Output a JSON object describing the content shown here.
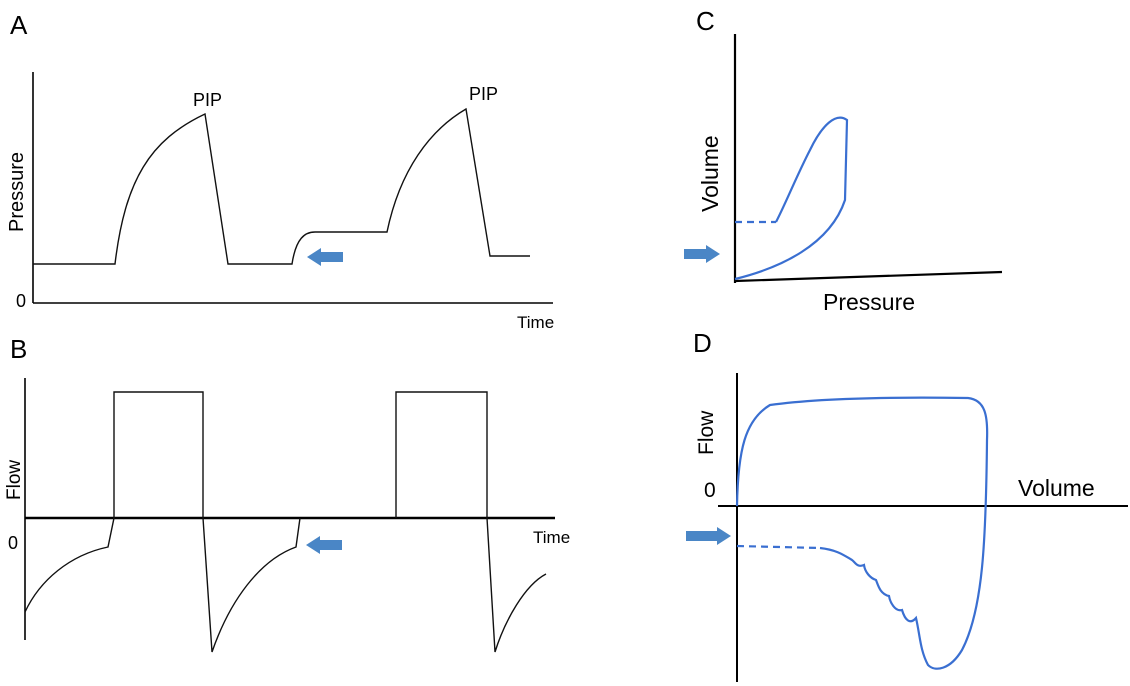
{
  "panels": {
    "A": {
      "letter": "A",
      "y_label": "Pressure",
      "x_label": "Time",
      "origin_label": "0",
      "peak_label_1": "PIP",
      "peak_label_2": "PIP"
    },
    "B": {
      "letter": "B",
      "y_label": "Flow",
      "x_label": "Time",
      "origin_label": "0"
    },
    "C": {
      "letter": "C",
      "y_label": "Volume",
      "x_label": "Pressure"
    },
    "D": {
      "letter": "D",
      "y_label": "Flow",
      "x_label": "Volume",
      "origin_label": "0"
    }
  },
  "colors": {
    "loop": "#3a6fd1",
    "arrow": "#4a86c6",
    "waveform": "#111111"
  },
  "icons": {
    "arrow_left": "arrow-left-icon",
    "arrow_right": "arrow-right-icon"
  }
}
